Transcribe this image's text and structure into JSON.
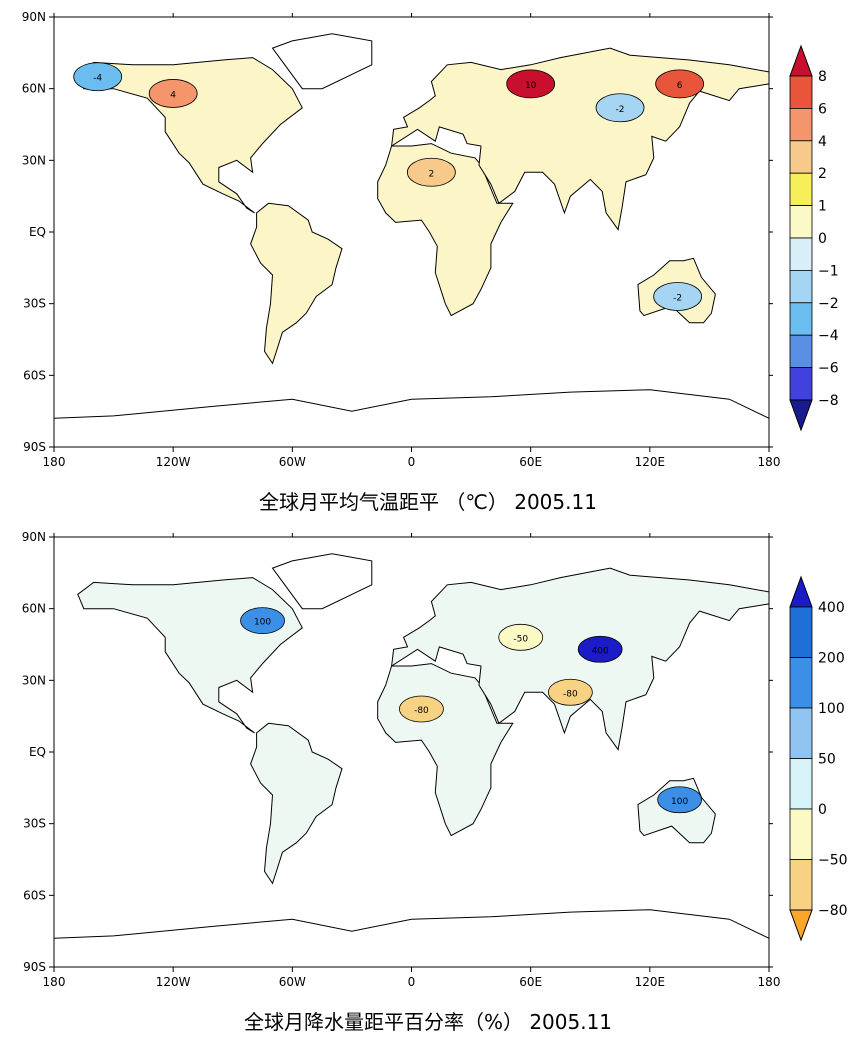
{
  "chart_data": [
    {
      "type": "heatmap",
      "title": "全球月平均气温距平 （℃） 2005.11",
      "xaxis": {
        "ticks": [
          "180",
          "120W",
          "60W",
          "0",
          "60E",
          "120E",
          "180"
        ],
        "range": [
          -180,
          180
        ]
      },
      "yaxis": {
        "ticks": [
          "90N",
          "60N",
          "30N",
          "EQ",
          "30S",
          "60S",
          "90S"
        ],
        "range": [
          -90,
          90
        ]
      },
      "colorbar": {
        "labels": [
          "8",
          "6",
          "4",
          "2",
          "1",
          "0",
          "−1",
          "−2",
          "−4",
          "−6",
          "−8"
        ],
        "colors": [
          "#c8102e",
          "#e8553a",
          "#f4956b",
          "#f7c98a",
          "#f6ef5a",
          "#fbf9c8",
          "#d8eef8",
          "#a5d5f2",
          "#6cbdef",
          "#5a8fe6",
          "#4141dd",
          "#1a1a90"
        ],
        "extend": "both"
      },
      "regions": [
        {
          "name": "central-siberia",
          "lon": 60,
          "lat": 62,
          "value": 10
        },
        {
          "name": "eastern-siberia",
          "lon": 135,
          "lat": 62,
          "value": 6
        },
        {
          "name": "mongolia",
          "lon": 105,
          "lat": 52,
          "value": -2
        },
        {
          "name": "north-africa",
          "lon": 10,
          "lat": 25,
          "value": 2
        },
        {
          "name": "australia-interior",
          "lon": 134,
          "lat": -27,
          "value": -2
        },
        {
          "name": "alaska",
          "lon": -158,
          "lat": 65,
          "value": -4
        },
        {
          "name": "western-canada",
          "lon": -120,
          "lat": 58,
          "value": 4
        }
      ]
    },
    {
      "type": "heatmap",
      "title": "全球月降水量距平百分率（%） 2005.11",
      "xaxis": {
        "ticks": [
          "180",
          "120W",
          "60W",
          "0",
          "60E",
          "120E",
          "180"
        ],
        "range": [
          -180,
          180
        ]
      },
      "yaxis": {
        "ticks": [
          "90N",
          "60N",
          "30N",
          "EQ",
          "30S",
          "60S",
          "90S"
        ],
        "range": [
          -90,
          90
        ]
      },
      "colorbar": {
        "labels": [
          "400",
          "200",
          "100",
          "50",
          "0",
          "−50",
          "−80"
        ],
        "colors": [
          "#1b1bc8",
          "#1f6fd9",
          "#3b8fe6",
          "#8fc4f2",
          "#d6f3f8",
          "#fbf9c4",
          "#f6d282",
          "#f8a72c"
        ],
        "extend": "both"
      },
      "regions": [
        {
          "name": "western-tibet",
          "lon": 95,
          "lat": 43,
          "value": 400
        },
        {
          "name": "north-africa",
          "lon": 5,
          "lat": 18,
          "value": -80
        },
        {
          "name": "central-asia",
          "lon": 55,
          "lat": 48,
          "value": -50
        },
        {
          "name": "south-asia",
          "lon": 80,
          "lat": 25,
          "value": -80
        },
        {
          "name": "eastern-canada",
          "lon": -75,
          "lat": 55,
          "value": 100
        },
        {
          "name": "northern-australia",
          "lon": 135,
          "lat": -20,
          "value": 100
        }
      ]
    }
  ]
}
